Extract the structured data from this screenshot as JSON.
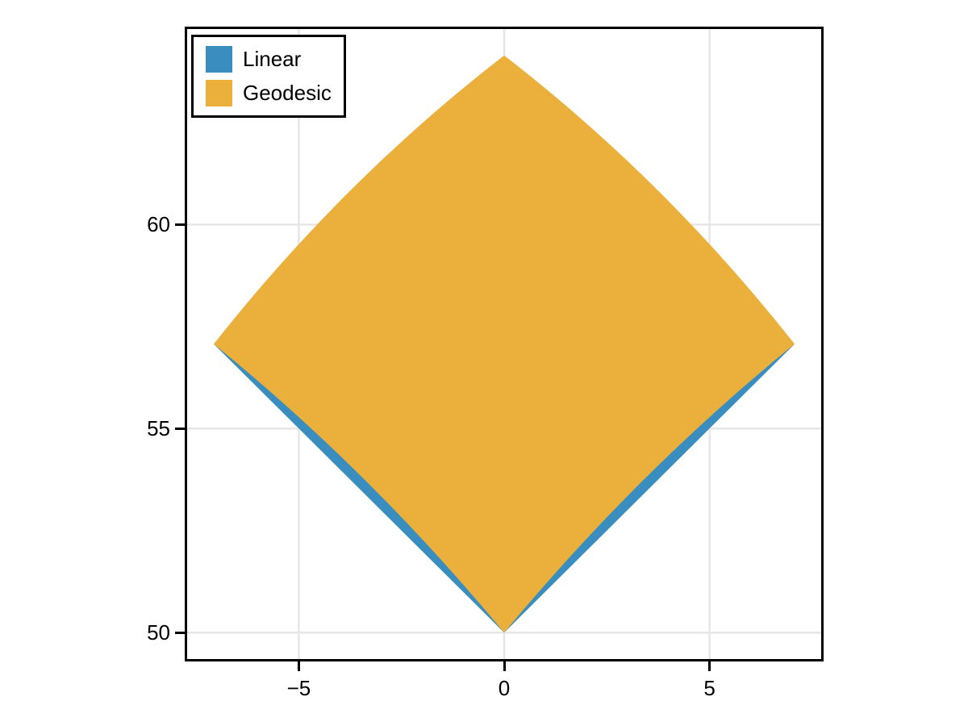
{
  "chart_data": {
    "type": "area",
    "title": "",
    "xlabel": "",
    "ylabel": "",
    "xlim": [
      -7.7782,
      7.7782
    ],
    "ylim": [
      49.2929,
      64.8492
    ],
    "grid": true,
    "legend_position": "top-left",
    "x_ticks": [
      {
        "value": -5,
        "label": "−5"
      },
      {
        "value": 0,
        "label": "0"
      },
      {
        "value": 5,
        "label": "5"
      }
    ],
    "y_ticks": [
      {
        "value": 50,
        "label": "50"
      },
      {
        "value": 55,
        "label": "55"
      },
      {
        "value": 60,
        "label": "60"
      }
    ],
    "series": [
      {
        "name": "Linear",
        "type": "filled-polygon",
        "interpolation": "linear",
        "color": "#3a8dbf",
        "vertices": [
          [
            0,
            50
          ],
          [
            7.0711,
            57.0711
          ],
          [
            0,
            64.1421
          ],
          [
            -7.0711,
            57.0711
          ]
        ]
      },
      {
        "name": "Geodesic",
        "type": "filled-polygon",
        "interpolation": "geodesic",
        "color": "#ebb03b",
        "vertices": [
          [
            0,
            50
          ],
          [
            7.0711,
            57.0711
          ],
          [
            0,
            64.1421
          ],
          [
            -7.0711,
            57.0711
          ]
        ]
      }
    ]
  },
  "styles": {
    "background": "#ffffff",
    "grid_color": "#e6e6e6",
    "spine_color": "#000000",
    "tick_color": "#000000",
    "tick_label_color": "#000000",
    "legend_border_color": "#000000",
    "legend_background": "#ffffff"
  }
}
